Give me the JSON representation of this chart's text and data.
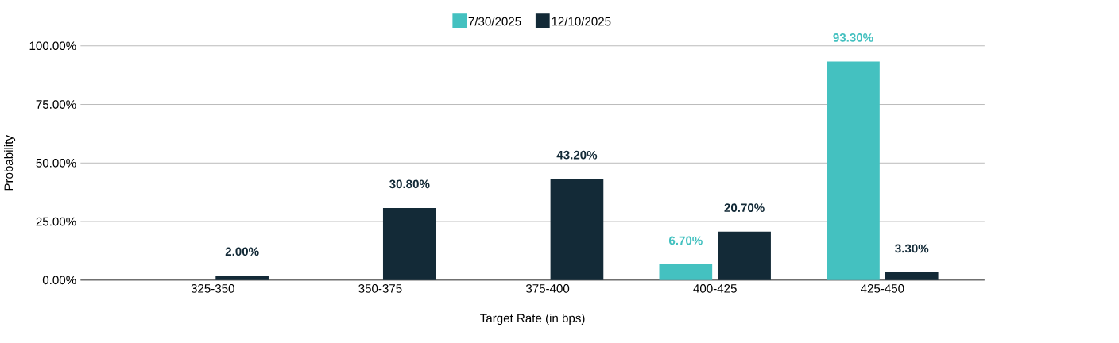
{
  "chart_data": {
    "type": "bar",
    "xlabel": "Target Rate (in bps)",
    "ylabel": "Probability",
    "categories": [
      "325-350",
      "350-375",
      "375-400",
      "400-425",
      "425-450"
    ],
    "series": [
      {
        "name": "7/30/2025",
        "color": "#44c1c0",
        "values": [
          null,
          null,
          null,
          6.7,
          93.3
        ],
        "value_labels": [
          null,
          null,
          null,
          "6.70%",
          "93.30%"
        ]
      },
      {
        "name": "12/10/2025",
        "color": "#132a37",
        "values": [
          2.0,
          30.8,
          43.2,
          20.7,
          3.3
        ],
        "value_labels": [
          "2.00%",
          "30.80%",
          "43.20%",
          "20.70%",
          "3.30%"
        ]
      }
    ],
    "ylim": [
      0,
      100
    ],
    "yticks": [
      {
        "value": 0,
        "label": "0.00%"
      },
      {
        "value": 25,
        "label": "25.00%"
      },
      {
        "value": 50,
        "label": "50.00%"
      },
      {
        "value": 75,
        "label": "75.00%"
      },
      {
        "value": 100,
        "label": "100.00%"
      }
    ],
    "grid": "y",
    "legend": "top"
  }
}
